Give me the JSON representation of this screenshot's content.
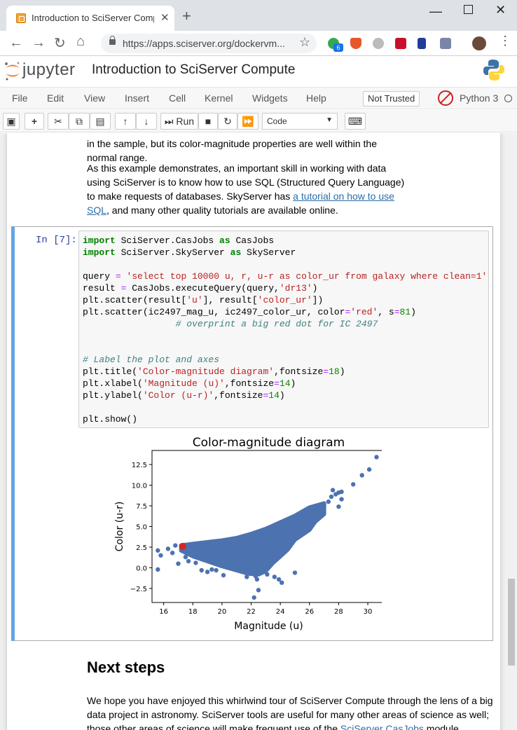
{
  "browser": {
    "tab_title": "Introduction to SciServer Compute",
    "url": "https://apps.sciserver.org/dockervm...",
    "ext_badge": "6"
  },
  "jupyter": {
    "logo_text": "jupyter",
    "notebook_title": "Introduction to SciServer Compute",
    "menu": [
      "File",
      "Edit",
      "View",
      "Insert",
      "Cell",
      "Kernel",
      "Widgets",
      "Help"
    ],
    "trust_label": "Not Trusted",
    "kernel": "Python 3",
    "run_label": "Run",
    "cell_type": "Code"
  },
  "content": {
    "para0": "in the sample, but its color-magnitude properties are well within the normal range.",
    "para1_pre": "As this example demonstrates, an important skill in working with data using SciServer is to know how to use SQL (Structured Query Language) to make requests of databases. SkyServer has ",
    "para1_link": "a tutorial on how to use SQL",
    "para1_post": ", and many other quality tutorials are available online.",
    "prompt": "In [7]:",
    "heading": "Next steps",
    "para2_pre": "We hope you have enjoyed this whirlwind tour of SciServer Compute through the lens of a big data project in astronomy. SciServer tools are useful for many other areas of science as well; those other areas of science will make frequent use of the ",
    "para2_link": "SciServer CasJobs",
    "para2_post": " module"
  },
  "chart_data": {
    "type": "scatter",
    "title": "Color-magnitude diagram",
    "xlabel": "Magnitude (u)",
    "ylabel": "Color (u-r)",
    "xlim": [
      15.2,
      31.2
    ],
    "ylim": [
      -4.2,
      14.2
    ],
    "xticks": [
      16,
      18,
      20,
      22,
      24,
      26,
      28,
      30
    ],
    "yticks": [
      -2.5,
      0.0,
      2.5,
      5.0,
      7.5,
      10.0,
      12.5
    ],
    "series": [
      {
        "color": "#4c72b0",
        "points": [
          [
            15.6,
            -0.2
          ],
          [
            15.6,
            2.1
          ],
          [
            15.8,
            1.5
          ],
          [
            16.3,
            2.3
          ],
          [
            16.6,
            1.8
          ],
          [
            16.8,
            2.7
          ],
          [
            17.0,
            0.5
          ],
          [
            17.5,
            1.3
          ],
          [
            17.7,
            0.8
          ],
          [
            18.2,
            0.6
          ],
          [
            18.6,
            -0.3
          ],
          [
            19.0,
            -0.5
          ],
          [
            19.3,
            -0.2
          ],
          [
            19.6,
            -0.3
          ],
          [
            20.1,
            -0.9
          ],
          [
            21.7,
            -1.1
          ],
          [
            22.3,
            -1.0
          ],
          [
            22.4,
            -1.4
          ],
          [
            22.5,
            -2.7
          ],
          [
            22.2,
            -3.6
          ],
          [
            23.1,
            -0.8
          ],
          [
            23.6,
            -1.1
          ],
          [
            23.9,
            -1.4
          ],
          [
            24.1,
            -1.8
          ],
          [
            25.0,
            -0.6
          ],
          [
            26.4,
            6.3
          ],
          [
            27.0,
            7.7
          ],
          [
            27.3,
            8.0
          ],
          [
            27.5,
            8.6
          ],
          [
            27.8,
            8.9
          ],
          [
            28.0,
            9.1
          ],
          [
            28.2,
            9.2
          ],
          [
            28.0,
            7.4
          ],
          [
            28.2,
            8.3
          ],
          [
            27.6,
            9.4
          ],
          [
            29.0,
            10.1
          ],
          [
            29.6,
            11.2
          ],
          [
            30.1,
            11.9
          ],
          [
            30.6,
            13.4
          ]
        ]
      },
      {
        "color": "#d62728",
        "points": [
          [
            17.3,
            2.6
          ]
        ]
      }
    ],
    "dense_region": "main galaxy locus from magnitude 17 to 27, color -1 to 7.5"
  }
}
